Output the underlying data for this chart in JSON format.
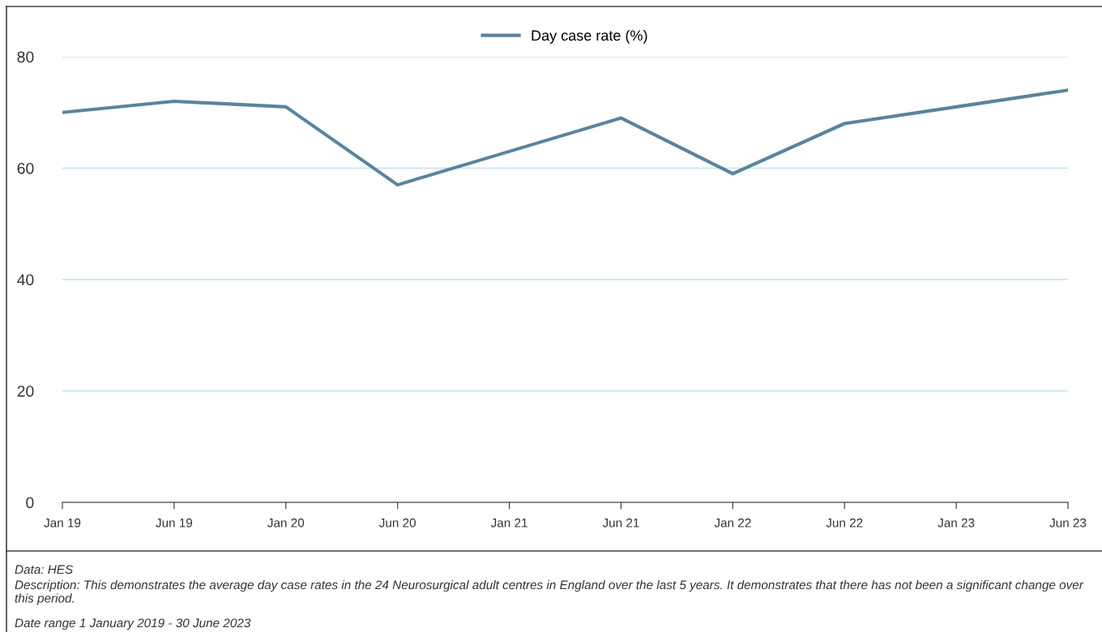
{
  "chart_data": {
    "type": "line",
    "categories": [
      "Jan 19",
      "Jun 19",
      "Jan 20",
      "Jun 20",
      "Jan 21",
      "Jun 21",
      "Jan 22",
      "Jun 22",
      "Jan 23",
      "Jun 23"
    ],
    "series": [
      {
        "name": "Day case rate (%)",
        "color": "#5a849e",
        "values": [
          70,
          72,
          71,
          57,
          63,
          69,
          59,
          68,
          71,
          74
        ]
      }
    ],
    "ylim": [
      0,
      80
    ],
    "yticks": [
      0,
      20,
      40,
      60,
      80
    ],
    "grid": "y",
    "legend": "top",
    "marker": "none",
    "line_style": "solid",
    "annotations": [
      "Data: HES",
      "Description: This demonstrates the average day case rates in the 24 Neurosurgical adult centres in England over the last 5 years. It demonstrates that there has not been a significant change over this period.",
      "Date range 1 January 2019 - 30 June 2023"
    ]
  }
}
